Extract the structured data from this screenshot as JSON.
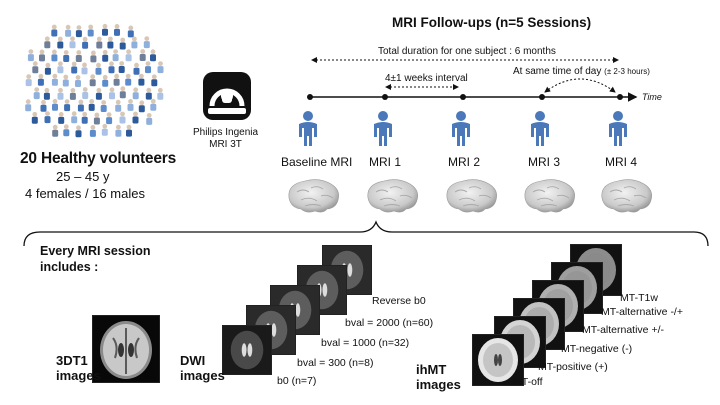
{
  "volunteers": {
    "title": "20 Healthy volunteers",
    "age": "25 – 45 y",
    "sex": "4 females / 16 males"
  },
  "scanner": {
    "line1": "Philips Ingenia",
    "line2": "MRI 3T"
  },
  "followups": {
    "title": "MRI Follow-ups (n=5 Sessions)",
    "duration": "Total duration for one subject : 6 months",
    "interval": "4±1 weeks interval",
    "same_time": "At same time of day",
    "same_time_note": "(± 2-3 hours)",
    "time_axis": "Time",
    "sessions": [
      "Baseline MRI",
      "MRI 1",
      "MRI 2",
      "MRI 3",
      "MRI 4"
    ]
  },
  "session_content": {
    "heading_line1": "Every MRI session",
    "heading_line2": "includes :",
    "t1": {
      "line1": "3DT1",
      "line2": "images"
    },
    "dwi": {
      "line1": "DWI",
      "line2": "images",
      "volumes": [
        "b0 (n=7)",
        "bval = 300 (n=8)",
        "bval = 1000 (n=32)",
        "bval = 2000 (n=60)",
        "Reverse b0"
      ]
    },
    "ihmt": {
      "line1": "ihMT",
      "line2": "images",
      "volumes": [
        "MT-off",
        "MT-positive (+)",
        "MT-negative (-)",
        "MT-alternative +/-",
        "MT-alternative -/+",
        "MT-T1w"
      ]
    }
  }
}
